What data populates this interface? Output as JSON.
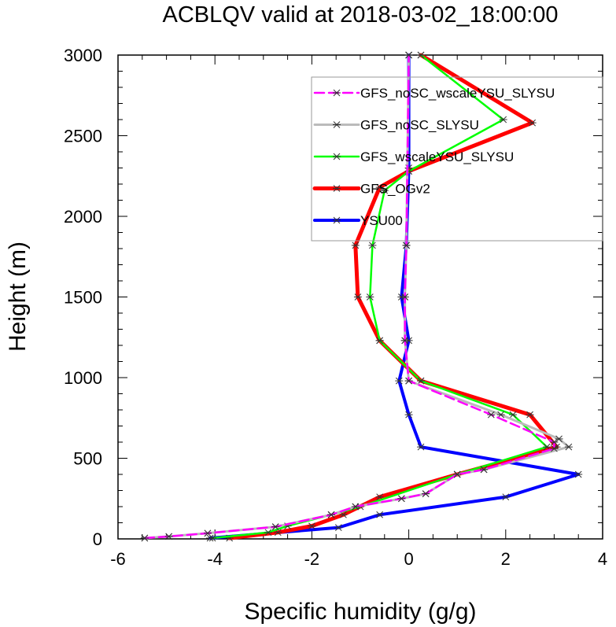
{
  "chart_data": {
    "type": "line",
    "title": "ACBLQV valid at 2018-03-02_18:00:00",
    "xlabel": "Specific humidity (g/g)",
    "ylabel": "Height (m)",
    "xlim": [
      -6,
      4
    ],
    "ylim": [
      0,
      3000
    ],
    "xticks": [
      "-6",
      "-4",
      "-2",
      "0",
      "2",
      "4"
    ],
    "yticks": [
      "0",
      "500",
      "1000",
      "1500",
      "2000",
      "2500",
      "3000"
    ],
    "grid": false,
    "legend_position": "top-right",
    "series": [
      {
        "name": "GFS_noSC_wscaleYSU_SLYSU",
        "color": "#ff00ff",
        "dash": "dashed",
        "width": 2.5,
        "x": [
          -5.45,
          -4.95,
          -4.15,
          -2.75,
          -1.6,
          -1.1,
          -0.15,
          0.35,
          1.0,
          1.55,
          3.0,
          3.0,
          1.7,
          0.0,
          -0.08,
          -0.08,
          -0.05,
          0.0
        ],
        "y": [
          5,
          15,
          35,
          75,
          150,
          200,
          250,
          280,
          400,
          430,
          560,
          600,
          770,
          980,
          1230,
          1500,
          1820,
          3000
        ]
      },
      {
        "name": "GFS_noSC_SLYSU",
        "color": "#bbbbbb",
        "dash": "solid",
        "width": 3,
        "x": [
          -5.45,
          -4.95,
          -4.15,
          -2.75,
          -1.6,
          -1.1,
          -0.15,
          0.35,
          1.0,
          1.55,
          3.3,
          3.1,
          1.9,
          0.0,
          -0.08,
          -0.08,
          -0.05,
          0.0
        ],
        "y": [
          5,
          15,
          35,
          75,
          150,
          200,
          250,
          280,
          400,
          430,
          570,
          620,
          770,
          980,
          1230,
          1500,
          1820,
          3000
        ]
      },
      {
        "name": "GFS_wscaleYSU_SLYSU",
        "color": "#00ff00",
        "dash": "solid",
        "width": 2.5,
        "x": [
          -4.05,
          -2.9,
          -2.5,
          -1.6,
          -1.0,
          1.0,
          2.85,
          2.15,
          0.25,
          -0.6,
          -0.8,
          -0.75,
          -0.5,
          0.0,
          1.95,
          0.25
        ],
        "y": [
          5,
          40,
          80,
          150,
          200,
          400,
          570,
          770,
          980,
          1230,
          1500,
          1820,
          2160,
          2280,
          2600,
          3000
        ]
      },
      {
        "name": "GFS_OGv2",
        "color": "#ff0000",
        "dash": "solid",
        "width": 5,
        "x": [
          -3.7,
          -2.7,
          -2.0,
          -1.35,
          -0.6,
          1.0,
          3.05,
          2.5,
          0.25,
          -0.6,
          -1.05,
          -1.1,
          -0.6,
          0.0,
          2.55,
          0.25
        ],
        "y": [
          5,
          40,
          80,
          150,
          260,
          400,
          570,
          770,
          980,
          1230,
          1500,
          1820,
          2180,
          2280,
          2580,
          3000
        ]
      },
      {
        "name": "YSU00",
        "color": "#0000ff",
        "dash": "solid",
        "width": 4,
        "x": [
          -4.1,
          -1.45,
          -0.6,
          2.0,
          3.5,
          0.25,
          0.0,
          -0.2,
          0.0,
          -0.15,
          -0.05,
          0.0,
          0.0
        ],
        "y": [
          5,
          70,
          150,
          260,
          400,
          570,
          770,
          980,
          1230,
          1500,
          1820,
          2300,
          3000
        ]
      }
    ]
  }
}
